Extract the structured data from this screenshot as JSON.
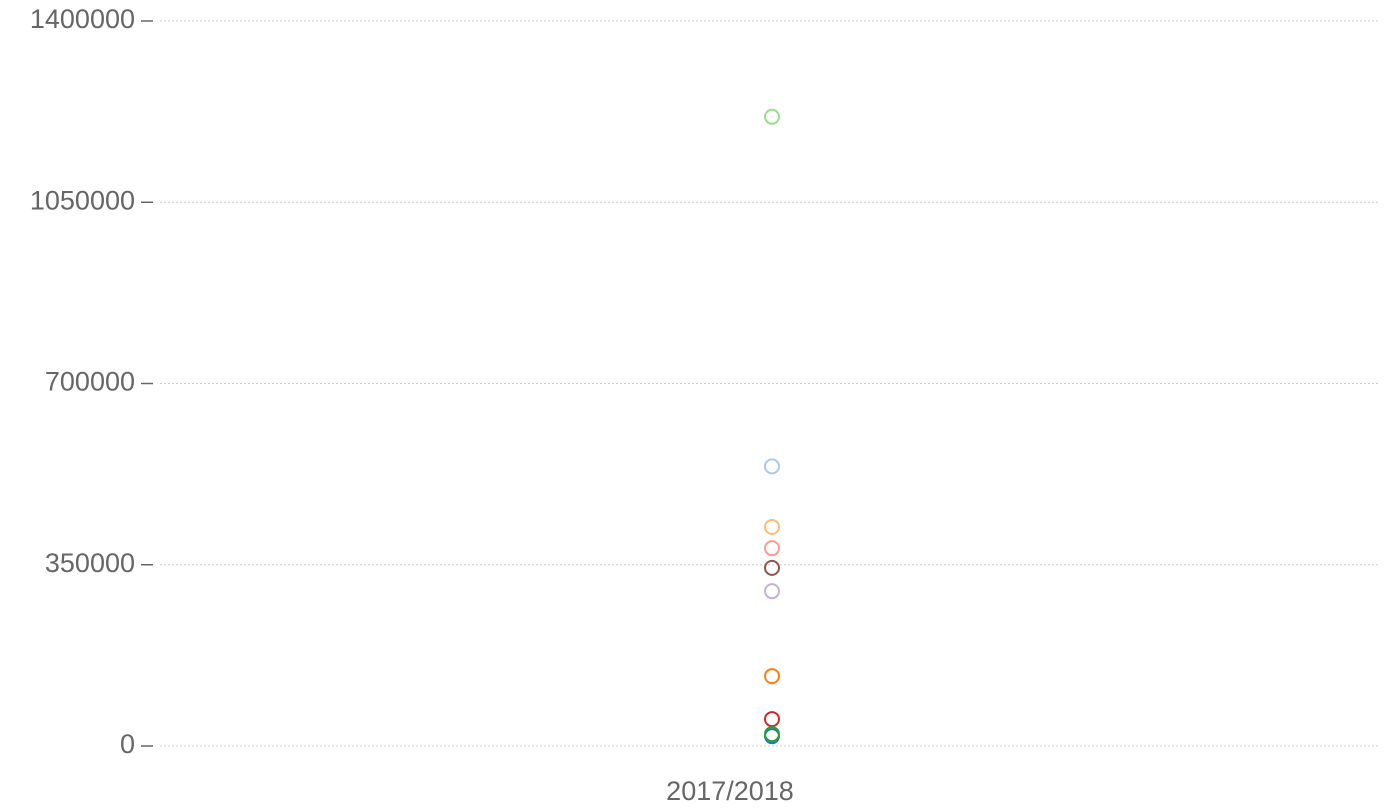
{
  "chart_data": {
    "type": "scatter",
    "categories": [
      "2017/2018"
    ],
    "series": [
      {
        "color": "#98df8a",
        "values": [
          1215000
        ]
      },
      {
        "color": "#aec7e8",
        "values": [
          540000
        ]
      },
      {
        "color": "#ffbb78",
        "values": [
          423000
        ]
      },
      {
        "color": "#ff9896",
        "values": [
          382000
        ]
      },
      {
        "color": "#8c564b",
        "values": [
          344000
        ]
      },
      {
        "color": "#c5b0d5",
        "values": [
          299000
        ]
      },
      {
        "color": "#ff7f0e",
        "values": [
          135000
        ]
      },
      {
        "color": "#d62728",
        "values": [
          52000
        ]
      },
      {
        "color": "#1f77b4",
        "values": [
          19000
        ]
      },
      {
        "color": "#2ca02c",
        "values": [
          23000
        ]
      }
    ],
    "ylim": [
      0,
      1400000
    ],
    "yticks": [
      0,
      350000,
      700000,
      1050000,
      1400000
    ],
    "grid": true
  }
}
